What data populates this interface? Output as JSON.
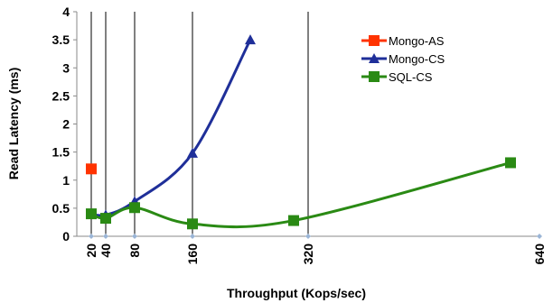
{
  "chart_data": {
    "type": "scatter",
    "title": "",
    "xlabel": "Throughput (Kops/sec)",
    "ylabel": "Read Latency (ms)",
    "xlim": [
      0,
      640
    ],
    "ylim": [
      0,
      4
    ],
    "x_ticks": [
      20,
      40,
      80,
      160,
      320,
      640
    ],
    "x_tick_labels": [
      "20",
      "40",
      "80",
      "160",
      "320",
      "640"
    ],
    "y_ticks": [
      0,
      0.5,
      1,
      1.5,
      2,
      2.5,
      3,
      3.5,
      4
    ],
    "y_tick_labels": [
      "0",
      "0.5",
      "1",
      "1.5",
      "2",
      "2.5",
      "3",
      "3.5",
      "4"
    ],
    "vertical_gridlines_at": [
      20,
      40,
      80,
      160,
      320
    ],
    "legend_placement": "top-right",
    "series": [
      {
        "name": "Mongo-AS",
        "color": "#ff3300",
        "marker": "square",
        "smooth": false,
        "x": [
          20
        ],
        "y": [
          1.2
        ]
      },
      {
        "name": "Mongo-CS",
        "color": "#1f2f99",
        "marker": "triangle",
        "smooth": true,
        "x": [
          20,
          40,
          80,
          160,
          240
        ],
        "y": [
          0.4,
          0.38,
          0.62,
          1.48,
          3.5
        ]
      },
      {
        "name": "SQL-CS",
        "color": "#2a8a14",
        "marker": "square",
        "smooth": true,
        "x": [
          20,
          40,
          80,
          160,
          300,
          600
        ],
        "y": [
          0.4,
          0.32,
          0.51,
          0.22,
          0.28,
          1.31
        ]
      }
    ]
  }
}
